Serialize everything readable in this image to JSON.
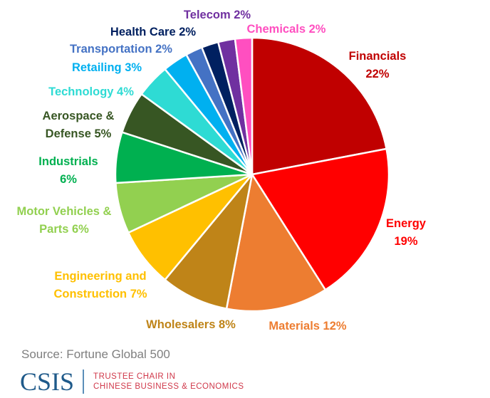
{
  "chart_data": {
    "type": "pie",
    "title": "",
    "start": "12 o'clock",
    "direction": "clockwise",
    "slices": [
      {
        "name": "Financials",
        "value": 22,
        "label": [
          "Financials",
          "22%"
        ],
        "color": "#C00000"
      },
      {
        "name": "Energy",
        "value": 19,
        "label": [
          "Energy",
          "19%"
        ],
        "color": "#FF0000"
      },
      {
        "name": "Materials",
        "value": 12,
        "label": [
          "Materials 12%"
        ],
        "color": "#ED7D31"
      },
      {
        "name": "Wholesalers",
        "value": 8,
        "label": [
          "Wholesalers 8%"
        ],
        "color": "#BF8418"
      },
      {
        "name": "Engineering and Construction",
        "value": 7,
        "label": [
          "Engineering and",
          "Construction 7%"
        ],
        "color": "#FFC000"
      },
      {
        "name": "Motor Vehicles & Parts",
        "value": 6,
        "label": [
          "Motor Vehicles &",
          "Parts 6%"
        ],
        "color": "#92D050"
      },
      {
        "name": "Industrials",
        "value": 6,
        "label": [
          "Industrials",
          "6%"
        ],
        "color": "#00B050"
      },
      {
        "name": "Aerospace & Defense",
        "value": 5,
        "label": [
          "Aerospace &",
          "Defense 5%"
        ],
        "color": "#375623"
      },
      {
        "name": "Technology",
        "value": 4,
        "label": [
          "Technology 4%"
        ],
        "color": "#2EDBD4"
      },
      {
        "name": "Retailing",
        "value": 3,
        "label": [
          "Retailing 3%"
        ],
        "color": "#00B0F0"
      },
      {
        "name": "Transportation",
        "value": 2,
        "label": [
          "Transportation 2%"
        ],
        "color": "#4472C4"
      },
      {
        "name": "Health Care",
        "value": 2,
        "label": [
          "Health Care 2%"
        ],
        "color": "#002060"
      },
      {
        "name": "Telecom",
        "value": 2,
        "label": [
          "Telecom 2%"
        ],
        "color": "#7030A0"
      },
      {
        "name": "Chemicals",
        "value": 2,
        "label": [
          "Chemicals 2%"
        ],
        "color": "#FF4FC0"
      }
    ]
  },
  "source": "Source:  Fortune Global 500",
  "logo": {
    "word": "CSIS",
    "line1": "TRUSTEE CHAIR IN",
    "line2": "CHINESE BUSINESS & ECONOMICS"
  }
}
